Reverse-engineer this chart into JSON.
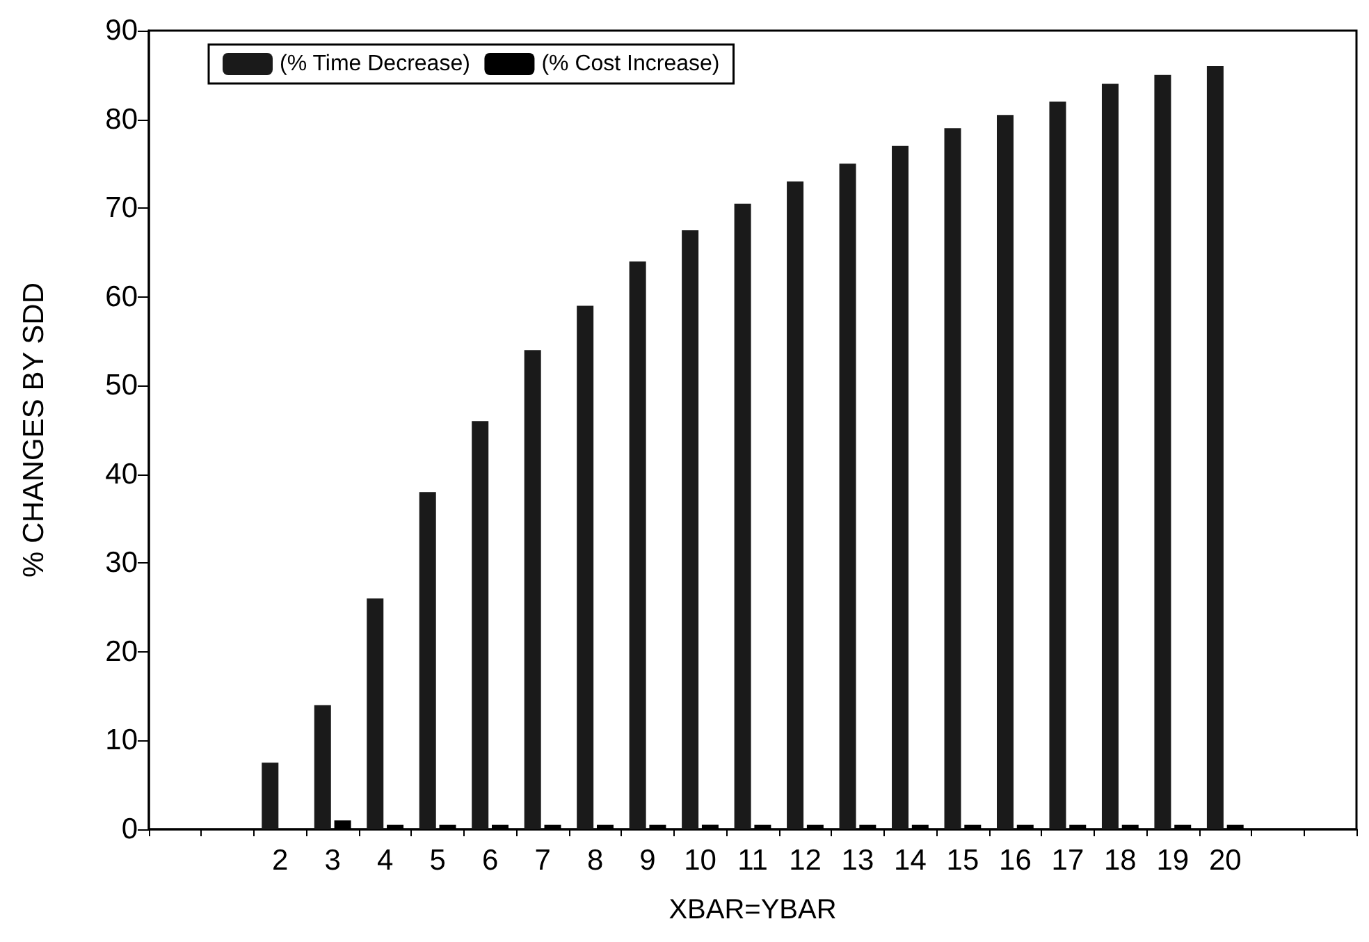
{
  "chart_data": {
    "type": "bar",
    "xlabel": "XBAR=YBAR",
    "ylabel": "% CHANGES BY SDD",
    "categories": [
      null,
      null,
      "2",
      "3",
      "4",
      "5",
      "6",
      "7",
      "8",
      "9",
      "10",
      "11",
      "12",
      "13",
      "14",
      "15",
      "16",
      "17",
      "18",
      "19",
      "20",
      null,
      null
    ],
    "series": [
      {
        "name": "(% Time Decrease)",
        "color": "#1a1a1a",
        "values": [
          null,
          null,
          7.5,
          14,
          26,
          38,
          46,
          54,
          59,
          64,
          67.5,
          70.5,
          73,
          75,
          77,
          79,
          80.5,
          82,
          84,
          85,
          86,
          null,
          null
        ]
      },
      {
        "name": "(% Cost Increase)",
        "color": "#000000",
        "values": [
          null,
          null,
          0,
          1,
          0.5,
          0.5,
          0.5,
          0.5,
          0.5,
          0.5,
          0.5,
          0.5,
          0.5,
          0.5,
          0.5,
          0.5,
          0.5,
          0.5,
          0.5,
          0.5,
          0.5,
          null,
          null
        ]
      }
    ],
    "ylim": [
      0,
      90
    ],
    "yticks": [
      0,
      10,
      20,
      30,
      40,
      50,
      60,
      70,
      80,
      90
    ],
    "grid": false,
    "legend": "top left"
  }
}
